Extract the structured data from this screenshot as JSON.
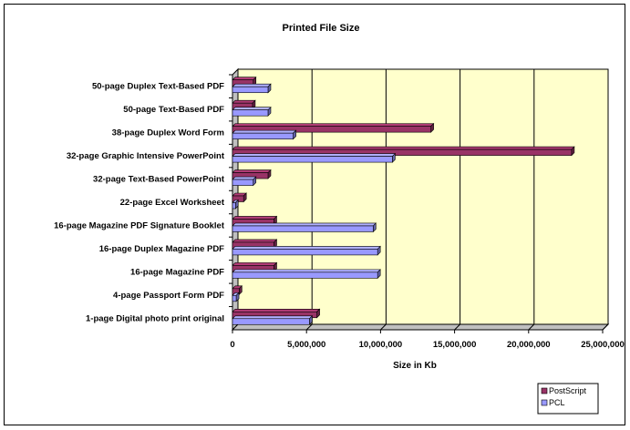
{
  "chart_data": {
    "type": "bar",
    "orientation": "horizontal",
    "style": "3d-clustered",
    "title": "Printed File Size",
    "xlabel": "Size in Kb",
    "ylabel": "",
    "xlim": [
      0,
      25000000
    ],
    "x_ticks": [
      0,
      5000000,
      10000000,
      15000000,
      20000000,
      25000000
    ],
    "x_tick_labels": [
      "0",
      "5,000,000",
      "10,000,000",
      "15,000,000",
      "20,000,000",
      "25,000,000"
    ],
    "categories": [
      "50-page Duplex Text-Based PDF",
      "50-page Text-Based PDF",
      "38-page Duplex Word Form",
      "32-page Graphic Intensive PowerPoint",
      "32-page Text-Based PowerPoint",
      "22-page Excel Worksheet",
      "16-page Magazine PDF Signature Booklet",
      "16-page Duplex Magazine PDF",
      "16-page Magazine PDF",
      "4-page Passport Form PDF",
      "1-page Digital photo print original"
    ],
    "series": [
      {
        "name": "PostScript",
        "color": "#993366",
        "values": [
          1400000,
          1350000,
          13400000,
          22900000,
          2400000,
          750000,
          2800000,
          2800000,
          2800000,
          450000,
          5700000
        ]
      },
      {
        "name": "PCL",
        "color": "#9999ff",
        "values": [
          2400000,
          2400000,
          4100000,
          10800000,
          1400000,
          200000,
          9500000,
          9800000,
          9800000,
          250000,
          5200000
        ]
      }
    ],
    "grid": true,
    "legend_position": "bottom-right",
    "plot_background": "#ffffcc"
  }
}
